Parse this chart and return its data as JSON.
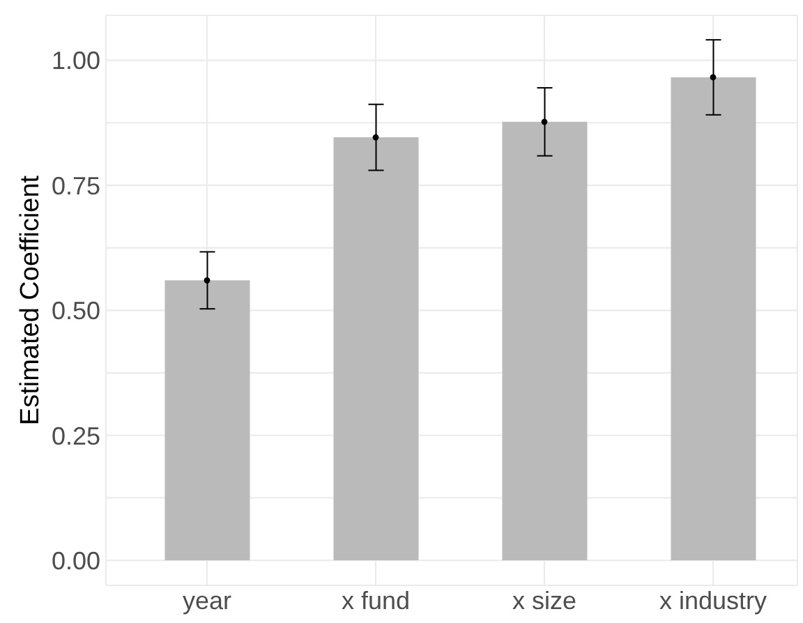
{
  "chart_data": {
    "type": "bar",
    "ylabel": "Estimated Coefficient",
    "categories": [
      "year",
      "x fund",
      "x size",
      "x industry"
    ],
    "series": [
      {
        "color": "#bababa",
        "values": [
          0.56,
          0.846,
          0.877,
          0.966
        ],
        "errors": [
          0.057,
          0.066,
          0.068,
          0.075
        ]
      },
      {
        "type": "scatter",
        "x": [
          "year",
          "x fund",
          "x size",
          "x industry"
        ],
        "color": "#000000",
        "marker": "circle",
        "values": [
          0.56,
          0.846,
          0.877,
          0.966
        ]
      }
    ],
    "ylim": [
      -0.05,
      1.09
    ],
    "yticks": [
      {
        "value": 0,
        "label": "0.00"
      },
      {
        "value": 0.125,
        "label": null
      },
      0.25,
      {
        "value": 0.375,
        "label": null
      },
      {
        "value": 0.5,
        "label": "0.50"
      },
      {
        "value": 0.625,
        "label": null
      },
      0.75,
      {
        "value": 0.875,
        "label": null
      },
      {
        "value": 1,
        "label": "1.00"
      }
    ],
    "grid": true
  }
}
